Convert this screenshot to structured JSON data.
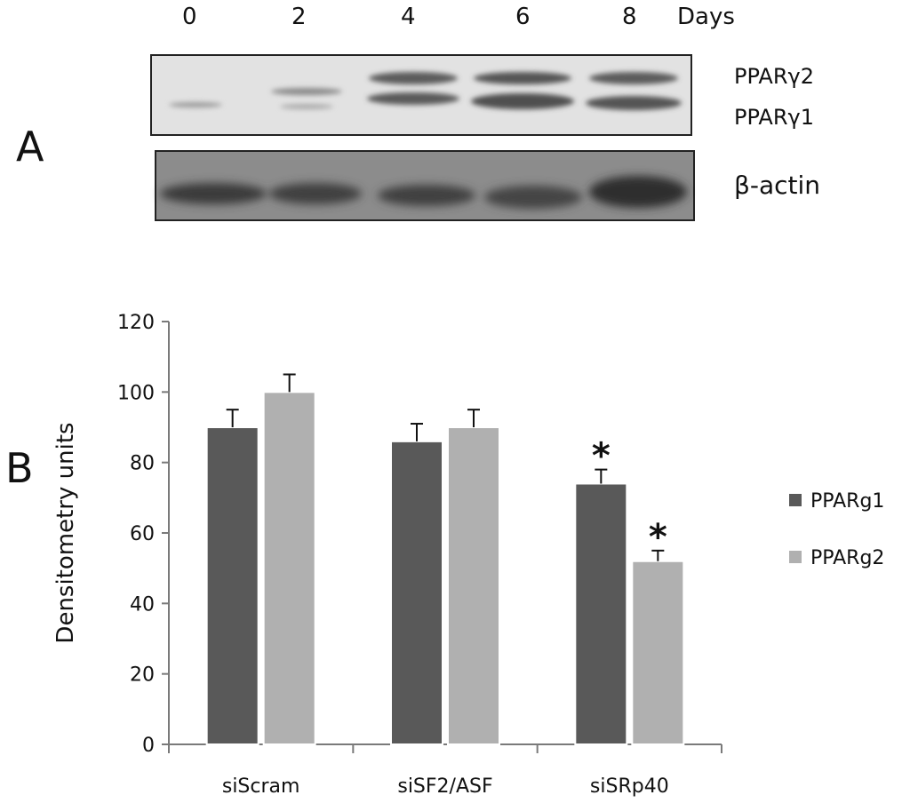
{
  "panel_a": {
    "letter": "A",
    "day_labels": [
      "0",
      "2",
      "4",
      "6",
      "8"
    ],
    "days_label": "Days",
    "band_labels": {
      "ppar_g2": "PPARγ2",
      "ppar_g1": "PPARγ1",
      "actin": "β-actin"
    }
  },
  "panel_b": {
    "letter": "B"
  },
  "chart_data": {
    "type": "bar",
    "categories": [
      "siScram",
      "siSF2/ASF",
      "siSRp40"
    ],
    "series": [
      {
        "name": "PPARg1",
        "values": [
          90,
          86,
          74
        ],
        "errors": [
          5,
          5,
          4
        ],
        "significance": [
          "",
          "",
          "*"
        ],
        "color": "#595959"
      },
      {
        "name": "PPARg2",
        "values": [
          100,
          90,
          52
        ],
        "errors": [
          5,
          5,
          3
        ],
        "significance": [
          "",
          "",
          "*"
        ],
        "color": "#b0b0b0"
      }
    ],
    "xlabel": "",
    "ylabel": "Densitometry units",
    "ylim": [
      0,
      120
    ],
    "yticks": [
      "0",
      "20",
      "40",
      "60",
      "80",
      "100",
      "120"
    ],
    "grid": false,
    "legend_position": "right"
  }
}
